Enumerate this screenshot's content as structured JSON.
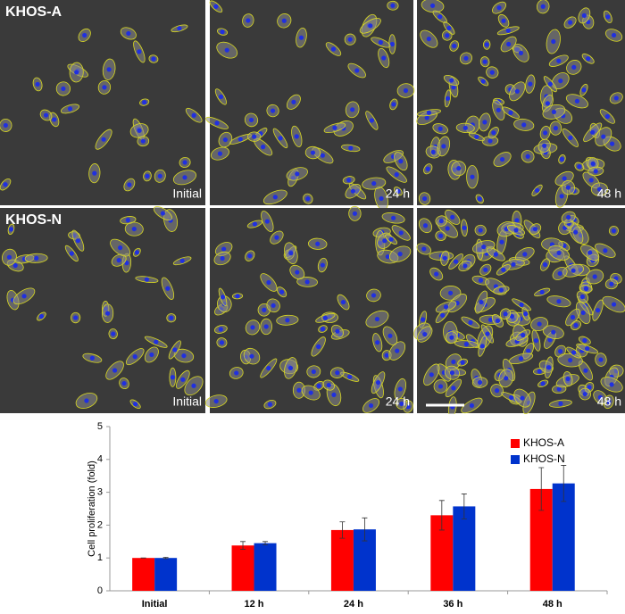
{
  "panels": {
    "rows": [
      {
        "label": "KHOS-A",
        "times": [
          "Initial",
          "24 h",
          "48 h"
        ]
      },
      {
        "label": "KHOS-N",
        "times": [
          "Initial",
          "24 h",
          "48 h"
        ]
      }
    ]
  },
  "chart_data": {
    "type": "bar",
    "ylabel": "Cell proliferation (fold)",
    "categories": [
      "Initial",
      "12 h",
      "24 h",
      "36 h",
      "48 h"
    ],
    "series": [
      {
        "name": "KHOS-A",
        "color": "#ff0000",
        "values": [
          1,
          1.38,
          1.85,
          2.3,
          3.1
        ],
        "errors": [
          0,
          0.12,
          0.25,
          0.45,
          0.65
        ]
      },
      {
        "name": "KHOS-N",
        "color": "#0033cc",
        "values": [
          1,
          1.45,
          1.87,
          2.57,
          3.27
        ],
        "errors": [
          0.02,
          0.05,
          0.35,
          0.38,
          0.55
        ]
      }
    ],
    "ylim": [
      0,
      5
    ],
    "yticks": [
      0,
      1,
      2,
      3,
      4,
      5
    ],
    "legend": "top-right"
  }
}
